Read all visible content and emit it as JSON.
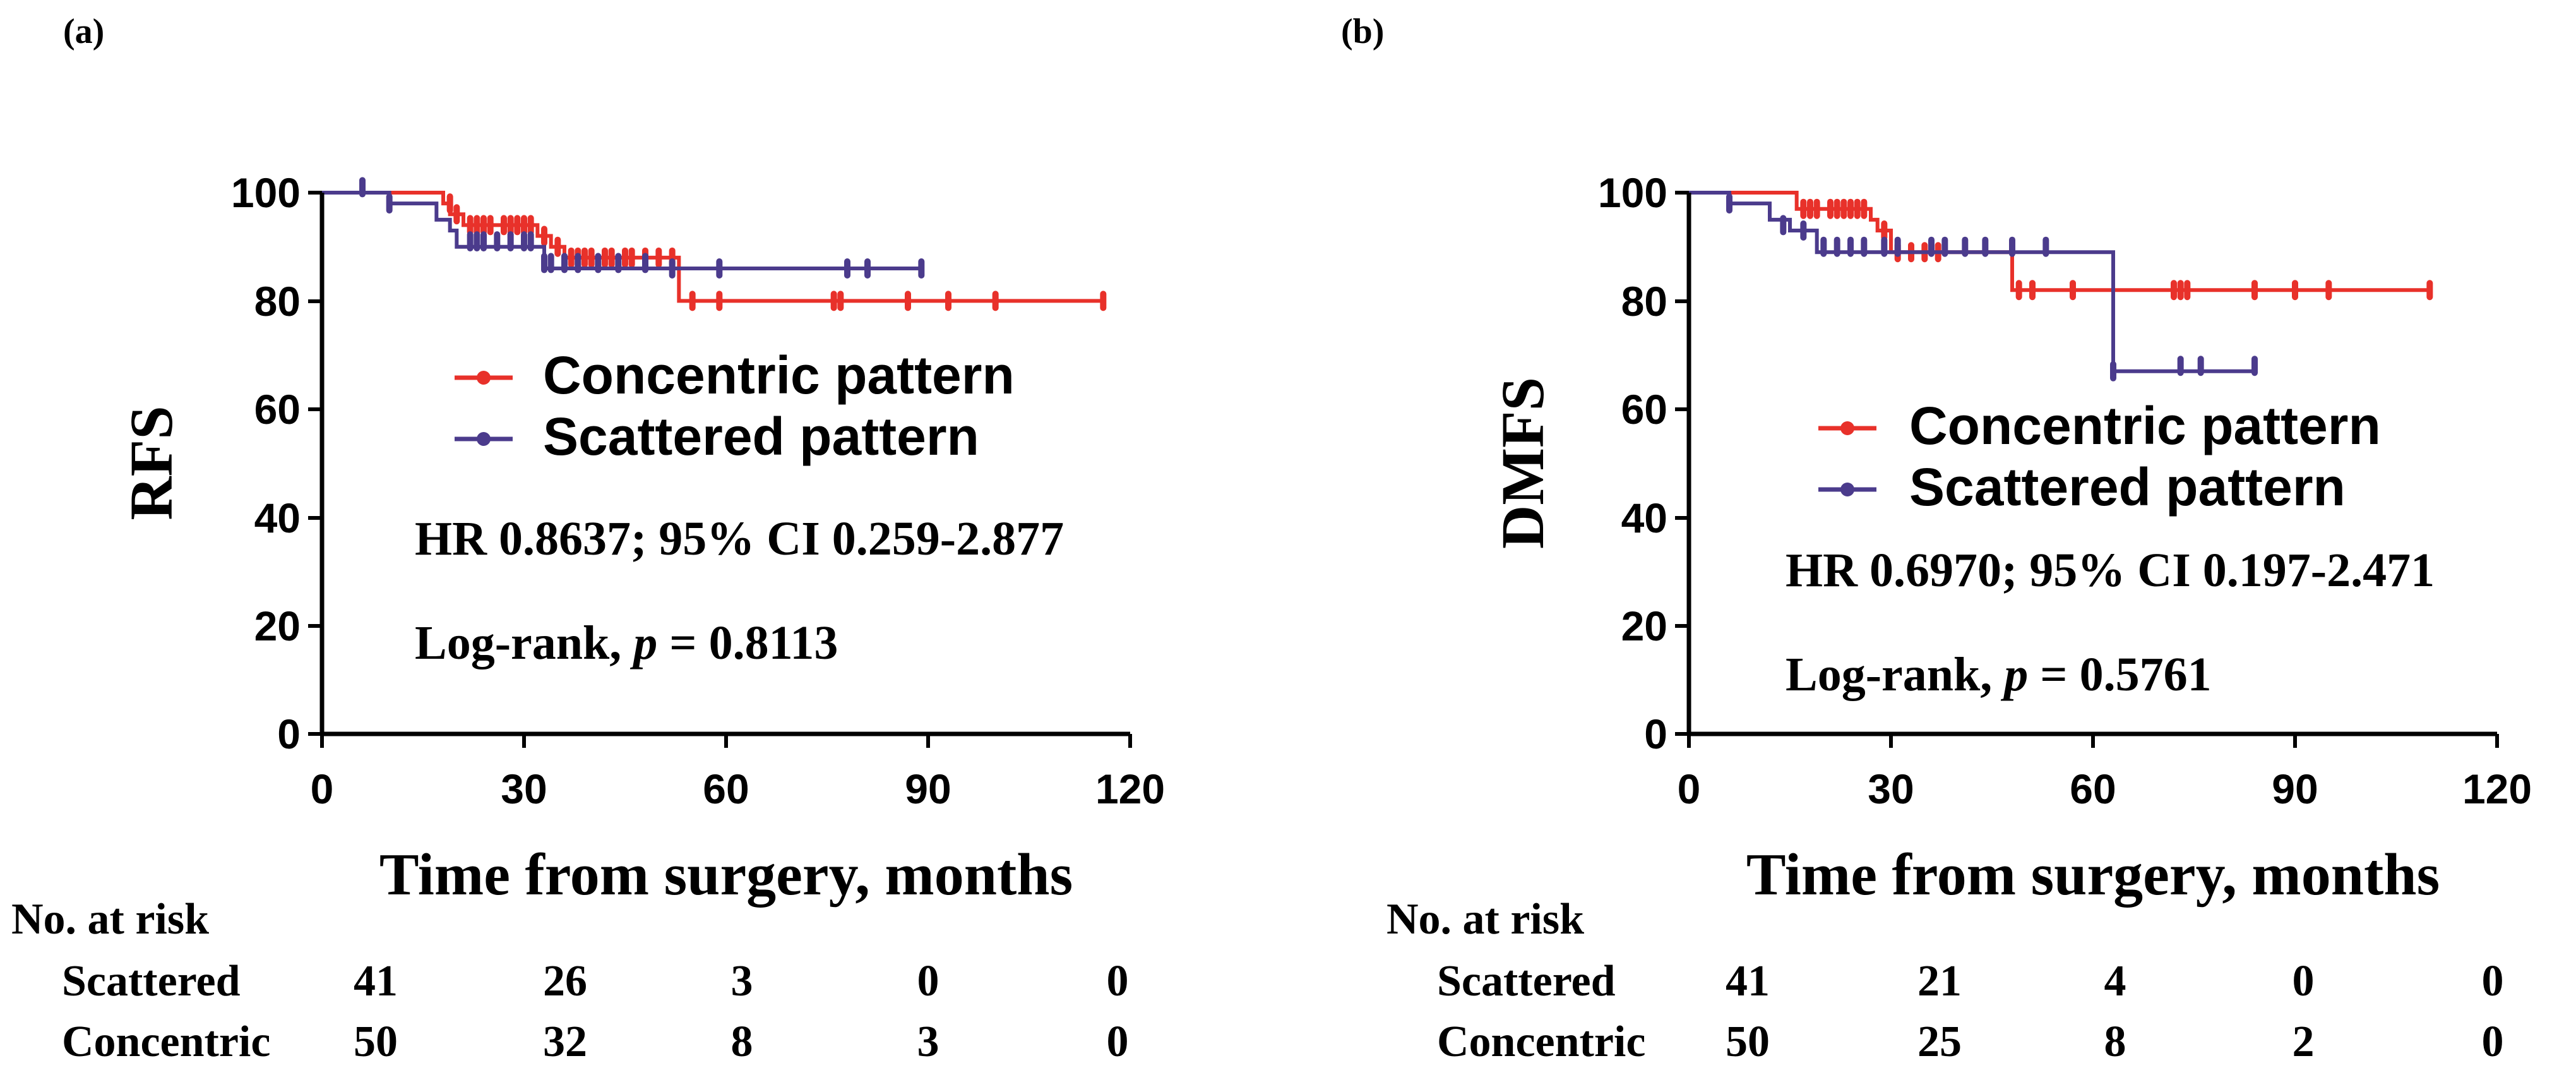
{
  "chart_data": [
    {
      "type": "line",
      "panel_label": "(a)",
      "ylabel": "RFS",
      "xlabel": "Time from surgery, months",
      "xlim": [
        0,
        120
      ],
      "ylim": [
        0,
        100
      ],
      "xticks": [
        "0",
        "30",
        "60",
        "90",
        "120"
      ],
      "yticks": [
        "0",
        "20",
        "40",
        "60",
        "80",
        "100"
      ],
      "legend": [
        {
          "name": "Concentric pattern",
          "color": "#e8312a"
        },
        {
          "name": "Scattered pattern",
          "color": "#4b3b8c"
        }
      ],
      "annotations": {
        "hr": "HR 0.8637; 95% CI 0.259-2.877",
        "logrank_prefix": "Log-rank, ",
        "p_symbol": "p",
        "p_value": " = 0.8113"
      },
      "series": [
        {
          "name": "Concentric pattern",
          "color": "#e8312a",
          "steps": [
            [
              0,
              100
            ],
            [
              18,
              98
            ],
            [
              19,
              96
            ],
            [
              21,
              94
            ],
            [
              32,
              92
            ],
            [
              34,
              90
            ],
            [
              36,
              88
            ],
            [
              53,
              80
            ],
            [
              116,
              80
            ]
          ],
          "censors": [
            [
              19,
              98
            ],
            [
              20,
              96
            ],
            [
              22,
              94
            ],
            [
              23,
              94
            ],
            [
              24,
              94
            ],
            [
              25,
              94
            ],
            [
              27,
              94
            ],
            [
              28,
              94
            ],
            [
              29,
              94
            ],
            [
              30,
              94
            ],
            [
              31,
              94
            ],
            [
              33,
              92
            ],
            [
              35,
              90
            ],
            [
              37,
              88
            ],
            [
              38,
              88
            ],
            [
              39,
              88
            ],
            [
              40,
              88
            ],
            [
              42,
              88
            ],
            [
              43,
              88
            ],
            [
              45,
              88
            ],
            [
              46,
              88
            ],
            [
              48,
              88
            ],
            [
              50,
              88
            ],
            [
              52,
              88
            ],
            [
              55,
              80
            ],
            [
              59,
              80
            ],
            [
              76,
              80
            ],
            [
              77,
              80
            ],
            [
              87,
              80
            ],
            [
              93,
              80
            ],
            [
              100,
              80
            ],
            [
              116,
              80
            ]
          ]
        },
        {
          "name": "Scattered pattern",
          "color": "#4b3b8c",
          "steps": [
            [
              0,
              100
            ],
            [
              10,
              98
            ],
            [
              17,
              95
            ],
            [
              19,
              93
            ],
            [
              20,
              90
            ],
            [
              33,
              86
            ],
            [
              34,
              86
            ],
            [
              89,
              86
            ]
          ],
          "censors": [
            [
              6,
              101
            ],
            [
              10,
              98
            ],
            [
              22,
              91
            ],
            [
              23,
              91
            ],
            [
              24,
              91
            ],
            [
              26,
              91
            ],
            [
              28,
              91
            ],
            [
              30,
              91
            ],
            [
              31,
              91
            ],
            [
              33,
              87
            ],
            [
              34,
              87
            ],
            [
              36,
              87
            ],
            [
              38,
              87
            ],
            [
              41,
              87
            ],
            [
              44,
              87
            ],
            [
              48,
              87
            ],
            [
              52,
              86
            ],
            [
              59,
              86
            ],
            [
              78,
              86
            ],
            [
              81,
              86
            ],
            [
              89,
              86
            ]
          ]
        }
      ],
      "risk_table": {
        "title": "No. at risk",
        "rows": [
          {
            "label": "Scattered",
            "values": [
              "41",
              "26",
              "3",
              "0",
              "0"
            ]
          },
          {
            "label": "Concentric",
            "values": [
              "50",
              "32",
              "8",
              "3",
              "0"
            ]
          }
        ]
      }
    },
    {
      "type": "line",
      "panel_label": "(b)",
      "ylabel": "DMFS",
      "xlabel": "Time from surgery, months",
      "xlim": [
        0,
        120
      ],
      "ylim": [
        0,
        100
      ],
      "xticks": [
        "0",
        "30",
        "60",
        "90",
        "120"
      ],
      "yticks": [
        "0",
        "20",
        "40",
        "60",
        "80",
        "100"
      ],
      "legend": [
        {
          "name": "Concentric pattern",
          "color": "#e8312a"
        },
        {
          "name": "Scattered pattern",
          "color": "#4b3b8c"
        }
      ],
      "annotations": {
        "hr": "HR 0.6970; 95% CI 0.197-2.471",
        "logrank_prefix": "Log-rank, ",
        "p_symbol": "p",
        "p_value": " = 0.5761"
      },
      "series": [
        {
          "name": "Concentric pattern",
          "color": "#e8312a",
          "steps": [
            [
              0,
              100
            ],
            [
              16,
              97
            ],
            [
              27,
              95
            ],
            [
              28,
              93
            ],
            [
              30,
              89
            ],
            [
              48,
              82
            ],
            [
              110,
              82
            ]
          ],
          "censors": [
            [
              17,
              97
            ],
            [
              18,
              97
            ],
            [
              19,
              97
            ],
            [
              21,
              97
            ],
            [
              22,
              97
            ],
            [
              23,
              97
            ],
            [
              24,
              97
            ],
            [
              25,
              97
            ],
            [
              26,
              97
            ],
            [
              29,
              93
            ],
            [
              31,
              89
            ],
            [
              33,
              89
            ],
            [
              35,
              89
            ],
            [
              37,
              89
            ],
            [
              49,
              82
            ],
            [
              51,
              82
            ],
            [
              57,
              82
            ],
            [
              72,
              82
            ],
            [
              73,
              82
            ],
            [
              74,
              82
            ],
            [
              84,
              82
            ],
            [
              90,
              82
            ],
            [
              95,
              82
            ],
            [
              110,
              82
            ]
          ]
        },
        {
          "name": "Scattered pattern",
          "color": "#4b3b8c",
          "steps": [
            [
              0,
              100
            ],
            [
              6,
              98
            ],
            [
              12,
              95
            ],
            [
              15,
              93
            ],
            [
              19,
              89
            ],
            [
              63,
              67
            ],
            [
              84,
              67
            ]
          ],
          "censors": [
            [
              6,
              98
            ],
            [
              14,
              94
            ],
            [
              17,
              93
            ],
            [
              20,
              90
            ],
            [
              22,
              90
            ],
            [
              24,
              90
            ],
            [
              26,
              90
            ],
            [
              29,
              90
            ],
            [
              31,
              90
            ],
            [
              36,
              90
            ],
            [
              38,
              90
            ],
            [
              41,
              90
            ],
            [
              44,
              90
            ],
            [
              48,
              90
            ],
            [
              53,
              90
            ],
            [
              63,
              67
            ],
            [
              73,
              68
            ],
            [
              76,
              68
            ],
            [
              84,
              68
            ]
          ]
        }
      ],
      "risk_table": {
        "title": "No. at risk",
        "rows": [
          {
            "label": "Scattered",
            "values": [
              "41",
              "21",
              "4",
              "0",
              "0"
            ]
          },
          {
            "label": "Concentric",
            "values": [
              "50",
              "25",
              "8",
              "2",
              "0"
            ]
          }
        ]
      }
    }
  ]
}
